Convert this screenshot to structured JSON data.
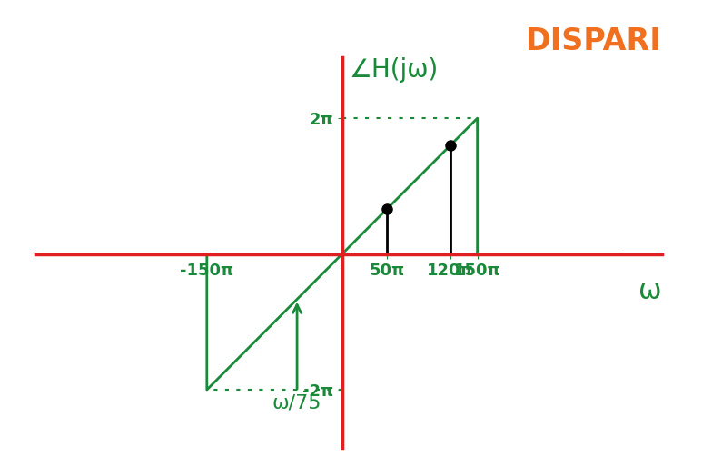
{
  "chart_data": {
    "type": "line",
    "title": "DISPARI",
    "x_label": "ω",
    "y_label": "∠H(jω)",
    "x": [
      -340,
      -150,
      -150,
      150,
      150,
      311
    ],
    "values": [
      0,
      0,
      -2,
      2,
      0,
      0
    ],
    "color": "#1a8a3a",
    "stems": {
      "x": [
        50,
        120
      ],
      "values": [
        0.67,
        1.6
      ],
      "color": "black",
      "marker": "o"
    },
    "annotations": [
      {
        "text": "ω/75",
        "x": -50,
        "y": -0.67
      }
    ],
    "xlim": [
      -340,
      355
    ],
    "ylim": [
      -2.85,
      2.9
    ],
    "xticks": [
      {
        "value": -150,
        "label": "-150π"
      },
      {
        "value": 50,
        "label": "50π"
      },
      {
        "value": 120,
        "label": "120π"
      },
      {
        "value": 150,
        "label": "150π"
      }
    ],
    "yticks": [
      {
        "value": -2,
        "label": "-2π"
      },
      {
        "value": 2,
        "label": "2π"
      }
    ],
    "grid": false
  }
}
